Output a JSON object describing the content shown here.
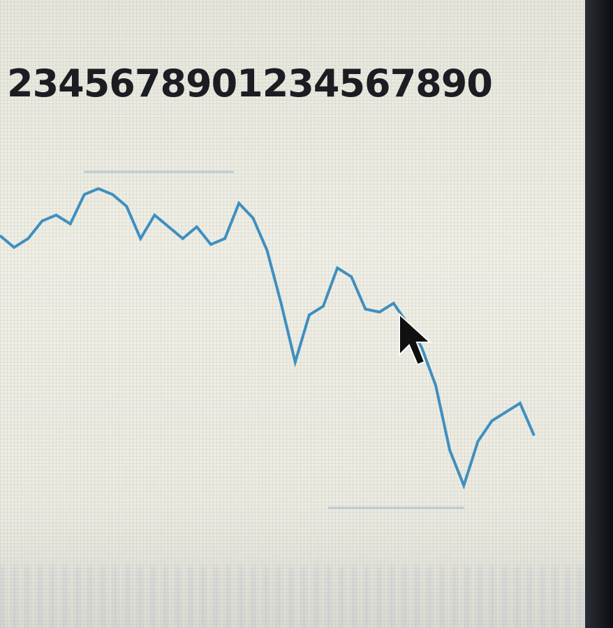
{
  "header": {
    "text": "2345678901234567890"
  },
  "chart_data": {
    "type": "line",
    "color": "#3f8fbf",
    "values": [
      95,
      91,
      94,
      100,
      102,
      99,
      109,
      111,
      109,
      105,
      94,
      102,
      98,
      94,
      98,
      92,
      94,
      106,
      101,
      90,
      72,
      52,
      68,
      71,
      84,
      81,
      70,
      69,
      72,
      65,
      57,
      44,
      22,
      10,
      25,
      32,
      35,
      38,
      27
    ]
  }
}
